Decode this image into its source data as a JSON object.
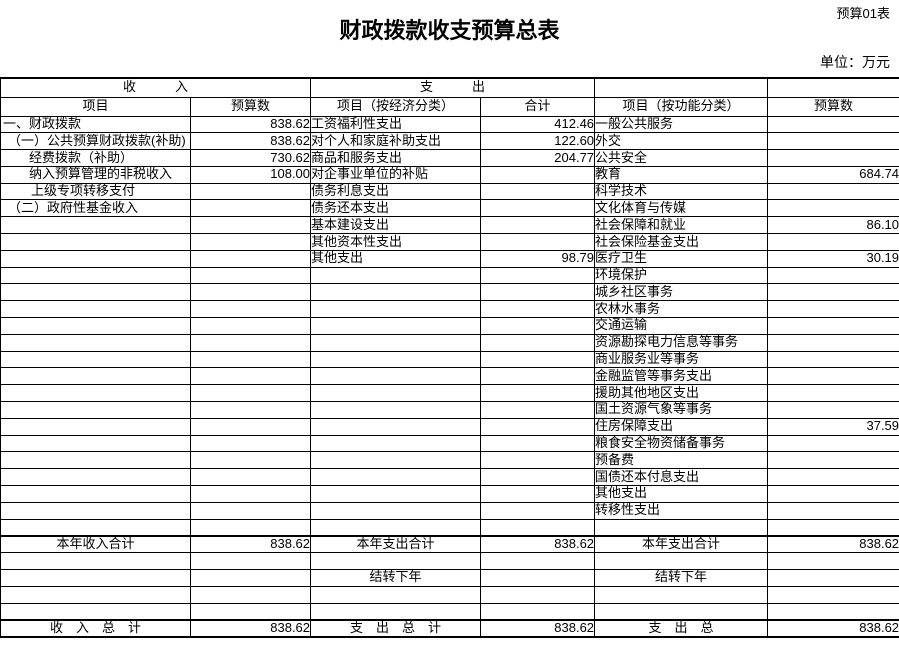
{
  "page": {
    "corner_label": "预算01表",
    "title": "财政拨款收支预算总表",
    "unit_label": "单位：万元"
  },
  "colors": {
    "text": "#000000",
    "background": "#ffffff",
    "grid_line": "#000000"
  },
  "table": {
    "group_headers": {
      "income": "收　　　入",
      "expenditure": "支　　　出",
      "blank_1": "",
      "blank_2": ""
    },
    "column_headers": [
      "项目",
      "预算数",
      "项目（按经济分类）",
      "合计",
      "项目（按功能分类）",
      "预算数"
    ],
    "rows": [
      {
        "cells": [
          "一、财政拨款",
          "838.62",
          "工资福利性支出",
          "412.46",
          "一般公共服务",
          ""
        ],
        "indent": 2
      },
      {
        "cells": [
          "（一）公共预算财政拨款(补助)",
          "838.62",
          "对个人和家庭补助支出",
          "122.60",
          "外交",
          ""
        ],
        "indent": 7
      },
      {
        "cells": [
          "经费拨款（补助）",
          "730.62",
          "商品和服务支出",
          "204.77",
          "公共安全",
          ""
        ],
        "indent": 28
      },
      {
        "cells": [
          "纳入预算管理的非税收入",
          "108.00",
          "对企事业单位的补贴",
          "",
          "教育",
          "684.74"
        ],
        "indent": 28
      },
      {
        "cells": [
          "上级专项转移支付",
          "",
          "债务利息支出",
          "",
          "科学技术",
          ""
        ],
        "indent": 30
      },
      {
        "cells": [
          "（二）政府性基金收入",
          "",
          "债务还本支出",
          "",
          "文化体育与传媒",
          ""
        ],
        "indent": 7
      },
      {
        "cells": [
          "",
          "",
          "基本建设支出",
          "",
          "社会保障和就业",
          "86.10"
        ]
      },
      {
        "cells": [
          "",
          "",
          "其他资本性支出",
          "",
          "社会保险基金支出",
          ""
        ]
      },
      {
        "cells": [
          "",
          "",
          "其他支出",
          "98.79",
          "医疗卫生",
          "30.19"
        ]
      },
      {
        "cells": [
          "",
          "",
          "",
          "",
          "环境保护",
          ""
        ]
      },
      {
        "cells": [
          "",
          "",
          "",
          "",
          "城乡社区事务",
          ""
        ]
      },
      {
        "cells": [
          "",
          "",
          "",
          "",
          "农林水事务",
          ""
        ]
      },
      {
        "cells": [
          "",
          "",
          "",
          "",
          "交通运输",
          ""
        ]
      },
      {
        "cells": [
          "",
          "",
          "",
          "",
          "资源勘探电力信息等事务",
          ""
        ]
      },
      {
        "cells": [
          "",
          "",
          "",
          "",
          "商业服务业等事务",
          ""
        ]
      },
      {
        "cells": [
          "",
          "",
          "",
          "",
          "金融监管等事务支出",
          ""
        ]
      },
      {
        "cells": [
          "",
          "",
          "",
          "",
          "援助其他地区支出",
          ""
        ]
      },
      {
        "cells": [
          "",
          "",
          "",
          "",
          "国土资源气象等事务",
          ""
        ]
      },
      {
        "cells": [
          "",
          "",
          "",
          "",
          "住房保障支出",
          "37.59"
        ]
      },
      {
        "cells": [
          "",
          "",
          "",
          "",
          "粮食安全物资储备事务",
          ""
        ]
      },
      {
        "cells": [
          "",
          "",
          "",
          "",
          "预备费",
          ""
        ]
      },
      {
        "cells": [
          "",
          "",
          "",
          "",
          "国债还本付息支出",
          ""
        ]
      },
      {
        "cells": [
          "",
          "",
          "",
          "",
          "其他支出",
          ""
        ]
      },
      {
        "cells": [
          "",
          "",
          "",
          "",
          "转移性支出",
          ""
        ]
      },
      {
        "cells": [
          "",
          "",
          "",
          "",
          "",
          ""
        ]
      },
      {
        "cells": [
          "本年收入合计",
          "838.62",
          "本年支出合计",
          "838.62",
          "本年支出合计",
          "838.62"
        ],
        "center": true,
        "thick": true
      },
      {
        "cells": [
          "",
          "",
          "",
          "",
          "",
          ""
        ]
      },
      {
        "cells": [
          "",
          "",
          "结转下年",
          "",
          "结转下年",
          ""
        ],
        "center": true
      },
      {
        "cells": [
          "",
          "",
          "",
          "",
          "",
          ""
        ]
      },
      {
        "cells": [
          "",
          "",
          "",
          "",
          "",
          ""
        ]
      },
      {
        "cells": [
          "收　入　总　计",
          "838.62",
          "支　出　总　计",
          "838.62",
          "支　出　总",
          "838.62"
        ],
        "center": true,
        "thick": true
      }
    ]
  }
}
